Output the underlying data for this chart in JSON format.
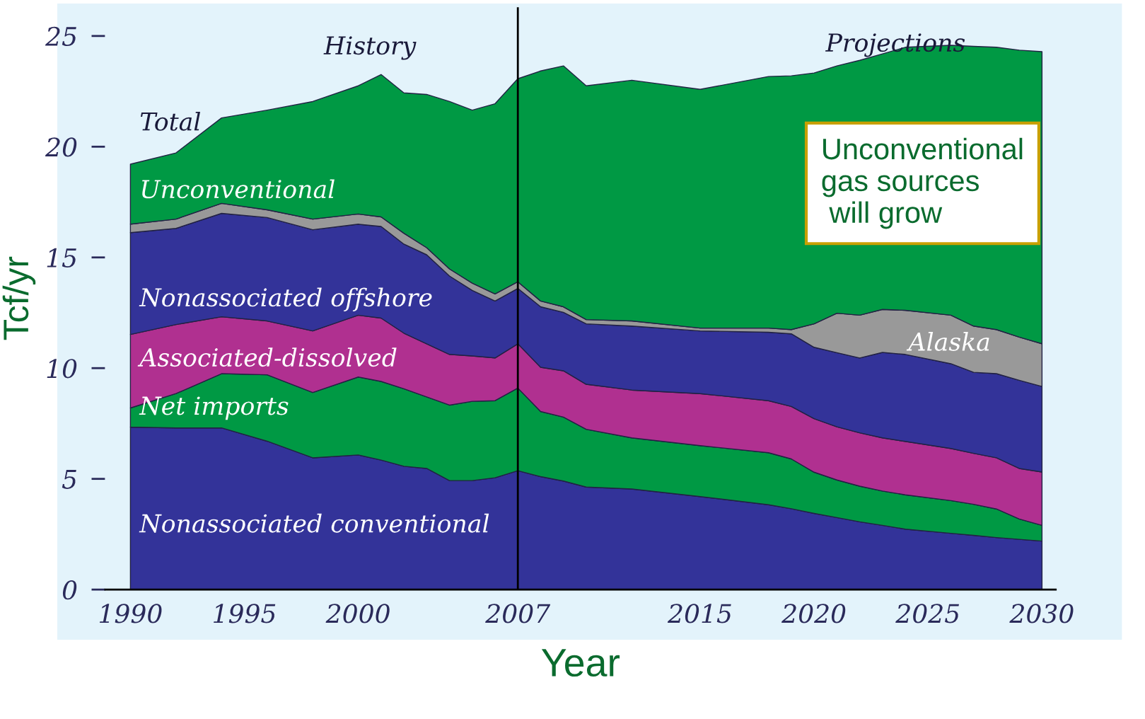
{
  "chart_data": {
    "type": "area",
    "stacked": true,
    "xlabel": "Year",
    "ylabel": "Tcf/yr",
    "x": [
      1990,
      1992,
      1994,
      1996,
      1998,
      2000,
      2001,
      2002,
      2003,
      2004,
      2005,
      2006,
      2007,
      2008,
      2009,
      2010,
      2012,
      2015,
      2018,
      2019,
      2020,
      2021,
      2022,
      2023,
      2024,
      2026,
      2027,
      2028,
      2029,
      2030
    ],
    "series": [
      {
        "color": "#333399",
        "values": [
          7.34,
          7.3,
          7.3,
          6.7,
          5.95,
          6.08,
          5.85,
          5.57,
          5.47,
          4.92,
          4.92,
          5.05,
          5.37,
          5.1,
          4.9,
          4.63,
          4.54,
          4.2,
          3.83,
          3.65,
          3.44,
          3.25,
          3.06,
          2.9,
          2.73,
          2.54,
          2.45,
          2.35,
          2.27,
          2.19
        ]
      },
      {
        "color": "#009944",
        "values": [
          0.86,
          1.55,
          2.45,
          3.0,
          2.95,
          3.52,
          3.55,
          3.5,
          3.23,
          3.41,
          3.58,
          3.48,
          3.73,
          2.94,
          2.89,
          2.61,
          2.31,
          2.3,
          2.35,
          2.25,
          1.86,
          1.7,
          1.61,
          1.55,
          1.55,
          1.48,
          1.4,
          1.29,
          0.92,
          0.71
        ]
      },
      {
        "color": "#b03090",
        "values": [
          3.32,
          3.12,
          2.57,
          2.43,
          2.78,
          2.79,
          2.86,
          2.51,
          2.4,
          2.29,
          2.05,
          1.93,
          2.0,
          2.0,
          2.09,
          2.03,
          2.16,
          2.35,
          2.35,
          2.37,
          2.42,
          2.4,
          2.41,
          2.4,
          2.41,
          2.35,
          2.3,
          2.31,
          2.28,
          2.41
        ]
      },
      {
        "color": "#333399",
        "values": [
          4.6,
          4.34,
          4.67,
          4.67,
          4.57,
          4.11,
          4.14,
          4.02,
          4.02,
          3.54,
          2.96,
          2.57,
          2.5,
          2.73,
          2.64,
          2.73,
          2.89,
          2.83,
          3.09,
          3.28,
          3.22,
          3.35,
          3.38,
          3.86,
          3.93,
          3.83,
          3.66,
          3.8,
          3.98,
          3.86
        ]
      },
      {
        "color": "#999999",
        "values": [
          0.38,
          0.42,
          0.45,
          0.35,
          0.48,
          0.46,
          0.43,
          0.49,
          0.32,
          0.32,
          0.33,
          0.32,
          0.3,
          0.26,
          0.25,
          0.19,
          0.23,
          0.13,
          0.19,
          0.19,
          1.06,
          1.78,
          1.93,
          1.94,
          1.99,
          2.19,
          2.09,
          1.99,
          1.95,
          1.93
        ]
      },
      {
        "color": "#009944",
        "values": [
          2.71,
          2.99,
          3.86,
          4.5,
          5.31,
          5.79,
          6.43,
          6.34,
          6.92,
          7.56,
          7.81,
          8.59,
          9.17,
          10.39,
          10.88,
          10.56,
          10.87,
          10.78,
          11.36,
          11.46,
          11.33,
          11.17,
          11.51,
          11.54,
          11.88,
          12.19,
          12.63,
          12.75,
          12.96,
          13.19
        ]
      }
    ],
    "xlim": [
      1988.9,
      2030.6
    ],
    "ylim": [
      0,
      26.3
    ],
    "xticks": [
      1990,
      1995,
      2000,
      2007,
      2015,
      2020,
      2025,
      2030
    ],
    "yticks": [
      0,
      5,
      10,
      15,
      20,
      25
    ],
    "grid": false,
    "legend": false,
    "ref_lines": [
      {
        "axis": "x",
        "value": 2007,
        "color": "#000000"
      }
    ],
    "annotations": [
      "History",
      "Projections",
      "Total",
      "Unconventional",
      "Nonassociated offshore",
      "Associated-dissolved",
      "Net imports",
      "Alaska",
      "Nonassociated conventional",
      "Unconventional\ngas sources\n will grow"
    ]
  }
}
